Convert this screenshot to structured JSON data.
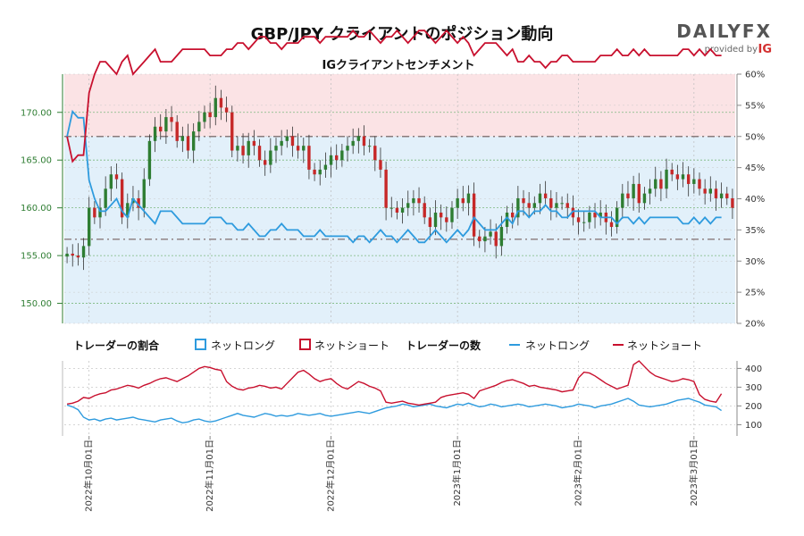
{
  "title": "GBP/JPY クライアントのポジション動向",
  "subtitle": "IGクライアントセンチメント",
  "logo": {
    "brand": "DAILYFX",
    "provided_by": "provided by",
    "ig": "IG"
  },
  "legend": {
    "pct_title": "トレーダーの割合",
    "pct_long": "ネットロング",
    "pct_short": "ネットショート",
    "count_title": "トレーダーの数",
    "count_long": "ネットロング",
    "count_short": "ネットショート"
  },
  "colors": {
    "long": "#2e9bde",
    "short": "#c8102e",
    "candle_up": "#2e7d32",
    "candle_down": "#c62828",
    "short_zone": "#fbe3e5",
    "long_zone": "#e2f0fa",
    "price_axis": "#2e7d32"
  },
  "chart_data": [
    {
      "type": "candlestick",
      "name": "price",
      "price_axis": {
        "ticks": [
          150,
          155,
          160,
          165,
          170
        ],
        "labels": [
          "150.00",
          "155.00",
          "160.00",
          "165.00",
          "170.00"
        ],
        "range": [
          147.9,
          174.0
        ]
      },
      "percent_axis": {
        "ticks": [
          20,
          25,
          30,
          35,
          40,
          45,
          50,
          55,
          60
        ],
        "labels": [
          "20%",
          "25%",
          "30%",
          "35%",
          "40%",
          "45%",
          "50%",
          "55%",
          "60%"
        ],
        "range": [
          20,
          60
        ]
      },
      "reference_lines": [
        50,
        33.5
      ],
      "close": [
        155.2,
        155.0,
        154.8,
        156.0,
        160.0,
        159.0,
        160.0,
        162.0,
        163.5,
        163.0,
        159.0,
        160.5,
        161.0,
        160.0,
        163.0,
        167.0,
        168.5,
        168.0,
        169.5,
        169.0,
        167.0,
        167.5,
        166.0,
        168.0,
        169.0,
        170.0,
        169.5,
        171.5,
        170.5,
        170.0,
        166.0,
        166.5,
        165.5,
        167.0,
        166.5,
        165.0,
        164.5,
        166.0,
        166.5,
        167.0,
        167.5,
        166.5,
        166.0,
        166.5,
        164.0,
        163.5,
        164.0,
        164.5,
        165.5,
        165.0,
        166.0,
        166.5,
        167.0,
        167.5,
        166.5,
        166.5,
        165.0,
        164.0,
        160.0,
        160.0,
        159.5,
        160.0,
        160.5,
        161.0,
        160.5,
        159.0,
        158.0,
        159.5,
        159.0,
        158.5,
        160.0,
        161.0,
        160.5,
        161.5,
        157.0,
        156.5,
        157.0,
        157.5,
        156.0,
        158.0,
        159.5,
        159.0,
        161.0,
        160.5,
        160.0,
        160.5,
        161.5,
        161.0,
        160.0,
        160.5,
        160.5,
        160.0,
        159.0,
        158.5,
        158.5,
        159.5,
        159.0,
        159.5,
        158.5,
        158.0,
        160.0,
        161.5,
        161.0,
        162.5,
        160.5,
        161.5,
        162.0,
        163.0,
        162.0,
        164.0,
        163.5,
        163.0,
        163.5,
        162.5,
        163.0,
        162.0,
        161.5,
        162.0,
        161.0,
        161.5,
        161.0,
        160.0
      ],
      "long_pct": [
        50,
        54,
        53,
        53,
        43,
        40,
        38,
        38,
        39,
        40,
        38,
        37,
        40,
        39,
        38,
        37,
        36,
        38,
        38,
        38,
        37,
        36,
        36,
        36,
        36,
        36,
        37,
        37,
        37,
        36,
        36,
        35,
        35,
        36,
        35,
        34,
        34,
        35,
        35,
        36,
        35,
        35,
        35,
        34,
        34,
        34,
        35,
        34,
        34,
        34,
        34,
        34,
        33,
        34,
        34,
        33,
        34,
        35,
        34,
        34,
        33,
        34,
        35,
        34,
        33,
        33,
        34,
        35,
        34,
        33,
        34,
        35,
        34,
        35,
        37,
        36,
        35,
        35,
        35,
        36,
        37,
        36,
        38,
        38,
        37,
        38,
        38,
        39,
        38,
        38,
        37,
        37,
        38,
        38,
        38,
        38,
        38,
        37,
        37,
        37,
        36,
        37,
        37,
        36,
        37,
        36,
        37,
        37,
        37,
        37,
        37,
        37,
        36,
        36,
        37,
        36,
        37,
        36,
        37,
        37
      ],
      "short_pct": [
        50,
        46,
        47,
        47,
        57,
        60,
        62,
        62,
        61,
        60,
        62,
        63,
        60,
        61,
        62,
        63,
        64,
        62,
        62,
        62,
        63,
        64,
        64,
        64,
        64,
        64,
        63,
        63,
        63,
        64,
        64,
        65,
        65,
        64,
        65,
        66,
        66,
        65,
        65,
        64,
        65,
        65,
        65,
        66,
        66,
        66,
        65,
        66,
        66,
        66,
        66,
        66,
        67,
        66,
        66,
        67,
        66,
        65,
        66,
        66,
        67,
        66,
        65,
        66,
        67,
        67,
        66,
        65,
        66,
        67,
        66,
        65,
        66,
        65,
        63,
        64,
        65,
        65,
        65,
        64,
        63,
        64,
        62,
        62,
        63,
        62,
        62,
        61,
        62,
        62,
        63,
        63,
        62,
        62,
        62,
        62,
        62,
        63,
        63,
        63,
        64,
        63,
        63,
        64,
        63,
        64,
        63,
        63,
        63,
        63,
        63,
        63,
        64,
        64,
        63,
        64,
        63,
        64,
        63,
        63
      ]
    },
    {
      "type": "line",
      "name": "trader_counts",
      "axis": {
        "ticks": [
          100,
          200,
          300,
          400
        ],
        "labels": [
          "100",
          "200",
          "300",
          "400"
        ],
        "range": [
          40,
          440
        ]
      },
      "long_count": [
        205,
        195,
        180,
        140,
        125,
        130,
        120,
        130,
        135,
        125,
        130,
        135,
        140,
        130,
        125,
        120,
        115,
        125,
        130,
        135,
        120,
        110,
        115,
        125,
        130,
        120,
        115,
        120,
        130,
        140,
        150,
        160,
        150,
        145,
        140,
        150,
        160,
        155,
        145,
        150,
        145,
        150,
        160,
        155,
        150,
        155,
        160,
        150,
        145,
        150,
        155,
        160,
        165,
        170,
        165,
        160,
        170,
        180,
        190,
        195,
        200,
        210,
        205,
        195,
        200,
        205,
        210,
        200,
        195,
        190,
        200,
        210,
        205,
        215,
        205,
        195,
        200,
        210,
        205,
        195,
        200,
        205,
        210,
        205,
        195,
        200,
        205,
        210,
        205,
        200,
        190,
        195,
        200,
        210,
        205,
        200,
        190,
        200,
        205,
        210,
        220,
        230,
        240,
        225,
        205,
        200,
        195,
        200,
        205,
        210,
        220,
        230,
        235,
        240,
        230,
        220,
        205,
        200,
        195,
        175
      ],
      "short_count": [
        210,
        215,
        225,
        245,
        240,
        255,
        265,
        270,
        285,
        290,
        300,
        310,
        305,
        295,
        310,
        320,
        335,
        345,
        350,
        340,
        330,
        345,
        360,
        380,
        400,
        410,
        405,
        395,
        390,
        330,
        305,
        290,
        285,
        295,
        300,
        310,
        305,
        295,
        300,
        290,
        320,
        350,
        380,
        390,
        370,
        345,
        330,
        340,
        345,
        320,
        300,
        290,
        310,
        330,
        320,
        305,
        295,
        280,
        220,
        215,
        220,
        225,
        215,
        210,
        205,
        210,
        215,
        220,
        245,
        255,
        260,
        265,
        270,
        262,
        240,
        280,
        290,
        300,
        310,
        325,
        335,
        340,
        330,
        320,
        305,
        310,
        300,
        295,
        290,
        285,
        275,
        280,
        285,
        350,
        380,
        375,
        360,
        340,
        320,
        305,
        290,
        300,
        310,
        420,
        440,
        410,
        380,
        360,
        350,
        340,
        330,
        335,
        345,
        340,
        330,
        260,
        235,
        225,
        220,
        265
      ],
      "date_labels": [
        "2022年10月01日",
        "2022年11月01日",
        "2022年12月01日",
        "2023年1月01日",
        "2023年2月01日",
        "2023年3月01日"
      ]
    }
  ]
}
